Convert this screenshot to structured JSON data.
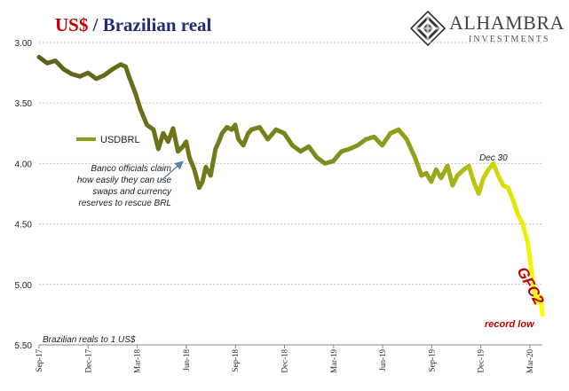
{
  "header": {
    "title_part1": "US$",
    "title_part2": " / Brazilian real"
  },
  "logo": {
    "name": "ALHAMBRA",
    "tagline": "INVESTMENTS"
  },
  "colors": {
    "title_red": "#c00000",
    "title_blue": "#1f2d7a",
    "annotation_red": "#c00000",
    "grid": "#bfbfbf",
    "arrow": "#5b7fa6",
    "gradient_start": "#5e5f1a",
    "gradient_mid": "#8e9a18",
    "gradient_end": "#ffff00"
  },
  "chart_data": {
    "type": "line",
    "title": "US$ / Brazilian real",
    "ylabel": "",
    "xlabel": "",
    "y_inverted": true,
    "ylim": [
      3.0,
      5.5
    ],
    "yticks": [
      "3.00",
      "3.50",
      "4.00",
      "4.50",
      "5.00",
      "5.50"
    ],
    "x_tick_labels": [
      "Sep-17",
      "Dec-17",
      "Mar-18",
      "Jun-18",
      "Sep-18",
      "Dec-18",
      "Mar-19",
      "Jun-19",
      "Sep-19",
      "Dec-19",
      "Mar-20"
    ],
    "grid": true,
    "legend": {
      "position": "left",
      "entries": [
        "USDBRL"
      ]
    },
    "series": [
      {
        "name": "USDBRL",
        "x": [
          0,
          0.5,
          1,
          1.5,
          2,
          2.5,
          3,
          3.5,
          4,
          4.5,
          5,
          5.3,
          5.5,
          5.7,
          5.9,
          6.2,
          6.6,
          7,
          7.3,
          7.6,
          7.9,
          8.2,
          8.5,
          8.8,
          9,
          9.2,
          9.5,
          9.8,
          10,
          10.2,
          10.5,
          10.8,
          11,
          11.2,
          11.5,
          11.8,
          12,
          12.2,
          12.5,
          12.8,
          13,
          13.5,
          14,
          14.5,
          15,
          15.5,
          16,
          16.5,
          17,
          17.5,
          18,
          18.5,
          19,
          19.5,
          20,
          20.5,
          21,
          21.5,
          22,
          22.5,
          23,
          23.4,
          23.7,
          24,
          24.3,
          24.6,
          25,
          25.3,
          25.6,
          26,
          26.3,
          26.6,
          26.9,
          27.2,
          27.5,
          27.8,
          28.1,
          28.4,
          28.7,
          29,
          29.3,
          29.6,
          29.9,
          30.1,
          30.3,
          30.5,
          30.7,
          30.8
        ],
        "values": [
          3.12,
          3.17,
          3.15,
          3.22,
          3.26,
          3.28,
          3.25,
          3.3,
          3.27,
          3.22,
          3.18,
          3.2,
          3.28,
          3.35,
          3.42,
          3.55,
          3.68,
          3.72,
          3.88,
          3.75,
          3.82,
          3.71,
          3.9,
          3.86,
          3.82,
          3.95,
          4.05,
          4.2,
          4.15,
          4.03,
          4.1,
          3.88,
          3.82,
          3.75,
          3.7,
          3.72,
          3.68,
          3.8,
          3.85,
          3.75,
          3.72,
          3.7,
          3.8,
          3.72,
          3.75,
          3.85,
          3.9,
          3.86,
          3.95,
          4.0,
          3.98,
          3.9,
          3.88,
          3.85,
          3.8,
          3.78,
          3.85,
          3.75,
          3.72,
          3.8,
          3.95,
          4.1,
          4.08,
          4.15,
          4.05,
          4.12,
          4.02,
          4.18,
          4.1,
          4.05,
          4.02,
          4.15,
          4.25,
          4.12,
          4.05,
          4.0,
          4.1,
          4.18,
          4.2,
          4.3,
          4.42,
          4.5,
          4.65,
          4.85,
          5.05,
          5.15,
          5.1,
          5.25
        ]
      }
    ],
    "annotations": {
      "note": "Banco officials claim how easily they can use swaps and currency reserves to rescue BRL",
      "dec30": "Dec 30",
      "gfc2": "GFC2",
      "record_low": "record low",
      "footnote": "Brazilian reals to 1 US$"
    }
  }
}
